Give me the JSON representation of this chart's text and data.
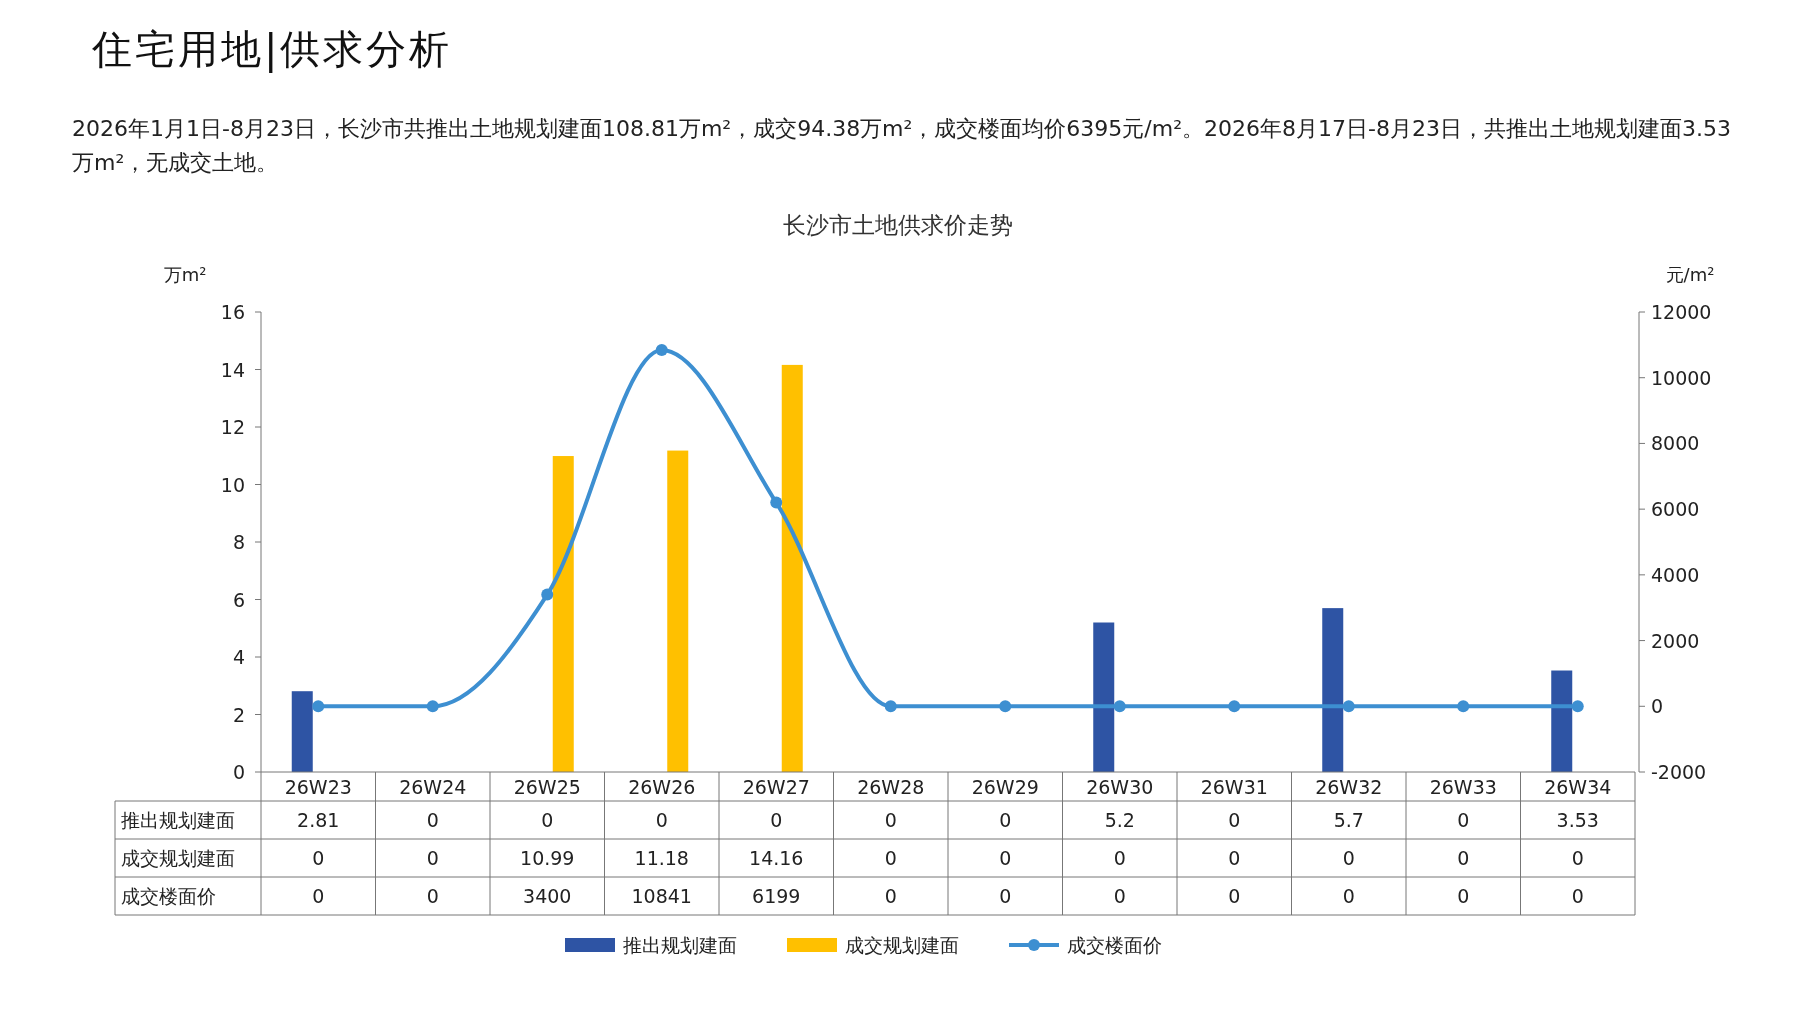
{
  "chart_data": {
    "type": "bar",
    "title": "长沙市土地供求价走势",
    "subtitle": "2026年1月1日-8月23日，长沙市共推出土地规划建面108.81万m²，成交94.38万m²，成交楼面均价6395元/m²。2026年8月17日-8月23日，共推出土地规划建面3.53万m²，无成交土地。",
    "annotations": [
      "住宅用地|供求分析"
    ],
    "categories": [
      "26W23",
      "26W24",
      "26W25",
      "26W26",
      "26W27",
      "26W28",
      "26W29",
      "26W30",
      "26W31",
      "26W32",
      "26W33",
      "26W34"
    ],
    "series": [
      {
        "name": "推出规划建面",
        "color": "#2e54a4",
        "values": [
          2.81,
          0,
          0,
          0,
          0,
          0,
          0,
          5.2,
          0,
          5.7,
          0,
          3.53
        ]
      },
      {
        "name": "成交规划建面",
        "color": "#ffc000",
        "values": [
          0,
          0,
          10.99,
          11.18,
          14.16,
          0,
          0,
          0,
          0,
          0,
          0,
          0
        ]
      },
      {
        "name": "成交楼面价",
        "type": "line",
        "axis": "y2",
        "color": "#3d8fd1",
        "marker": "circle",
        "values": [
          0,
          0,
          3400,
          10841,
          6199,
          0,
          0,
          0,
          0,
          0,
          0,
          0
        ]
      }
    ],
    "ylabel": "万m²",
    "y2label": "元/m²",
    "ylim": [
      0,
      16
    ],
    "yticks": [
      0,
      2,
      4,
      6,
      8,
      10,
      12,
      14,
      16
    ],
    "y2lim": [
      -2000,
      12000
    ],
    "y2ticks": [
      -2000,
      0,
      2000,
      4000,
      6000,
      8000,
      10000,
      12000
    ],
    "data_labels": true,
    "legend": "bottom"
  }
}
